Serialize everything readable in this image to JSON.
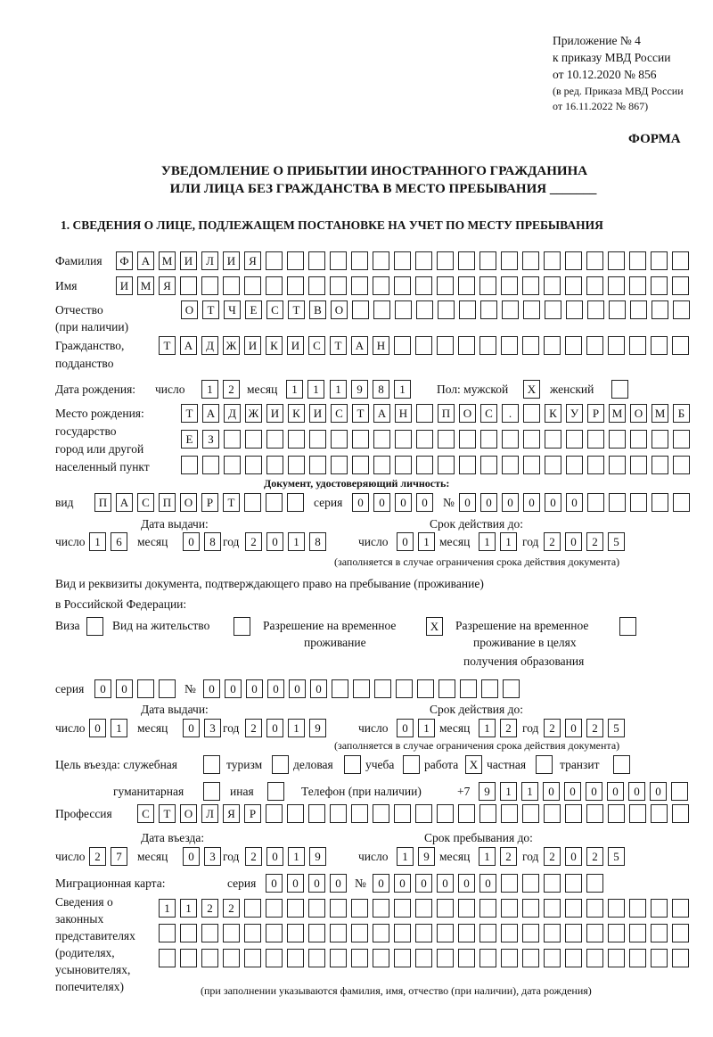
{
  "header": {
    "appendix": "Приложение № 4",
    "order": "к приказу МВД России",
    "order_date": "от 10.12.2020 № 856",
    "edition1": "(в ред. Приказа МВД России",
    "edition2": "от 16.11.2022 № 867)",
    "form_label": "ФОРМА",
    "title1": "УВЕДОМЛЕНИЕ О ПРИБЫТИИ ИНОСТРАННОГО ГРАЖДАНИНА",
    "title2": "ИЛИ ЛИЦА БЕЗ ГРАЖДАНСТВА В МЕСТО ПРЕБЫВАНИЯ _______",
    "section1": "1. СВЕДЕНИЯ О ЛИЦЕ, ПОДЛЕЖАЩЕМ ПОСТАНОВКЕ НА УЧЕТ ПО МЕСТУ ПРЕБЫВАНИЯ"
  },
  "labels": {
    "surname": "Фамилия",
    "name": "Имя",
    "patronymic1": "Отчество",
    "patronymic2": "(при наличии)",
    "citizenship1": "Гражданство,",
    "citizenship2": "подданство",
    "birth_date": "Дата рождения:",
    "day": "число",
    "month": "месяц",
    "year": "год",
    "sex_male": "Пол: мужской",
    "sex_female": "женский",
    "birthplace1": "Место рождения:",
    "birthplace2": "государство",
    "birthplace3": "город или другой",
    "birthplace4": "населенный пункт",
    "id_doc": "Документ, удостоверяющий личность:",
    "doc_type": "вид",
    "series": "серия",
    "number": "№",
    "issue_date": "Дата выдачи:",
    "valid_until": "Срок действия до:",
    "validity_note": "(заполняется в случае ограничения срока действия документа)",
    "permit_doc1": "Вид и реквизиты документа, подтверждающего право на пребывание (проживание)",
    "permit_doc2": "в Российской Федерации:",
    "visa": "Виза",
    "residence": "Вид на жительство",
    "temp_permit1": "Разрешение на временное",
    "temp_permit2": "проживание",
    "edu_permit1": "Разрешение на временное",
    "edu_permit2": "проживание в целях",
    "edu_permit3": "получения образования",
    "purpose": "Цель въезда: служебная",
    "tourism": "туризм",
    "business": "деловая",
    "study": "учеба",
    "work": "работа",
    "private": "частная",
    "transit": "транзит",
    "humanitarian": "гуманитарная",
    "other": "иная",
    "phone": "Телефон (при наличии)",
    "phone_prefix": "+7",
    "profession": "Профессия",
    "entry_date": "Дата въезда:",
    "stay_until": "Срок пребывания до:",
    "migration_card": "Миграционная карта:",
    "reps1": "Сведения о",
    "reps2": "законных",
    "reps3": "представителях",
    "reps4": "(родителях,",
    "reps5": "усыновителях,",
    "reps6": "попечителях)",
    "reps_note": "(при заполнении указываются фамилия, имя, отчество (при наличии), дата рождения)"
  },
  "fields": {
    "surname": "ФАМИЛИЯ",
    "name": "ИМЯ",
    "patronymic": "ОТЧЕСТВО",
    "citizenship": "ТАДЖИКИСТАН",
    "birth_day": "12",
    "birth_month": "11",
    "birth_year": "1981",
    "sex_male": "X",
    "sex_female": "",
    "birthplace_1": "ТАДЖИКИСТАН ПОС. КУРМОМБ",
    "birthplace_2": "ЕЗ",
    "birthplace_3": "",
    "doc_type": "ПАСПОРТ",
    "doc_series": "0000",
    "doc_number": "000000",
    "doc_issue_day": "16",
    "doc_issue_month": "08",
    "doc_issue_year": "2018",
    "doc_valid_day": "01",
    "doc_valid_month": "11",
    "doc_valid_year": "2025",
    "visa": "",
    "residence": "",
    "temp_permit": "X",
    "edu_permit": "",
    "permit_series": "00",
    "permit_number": "000000",
    "permit_issue_day": "01",
    "permit_issue_month": "03",
    "permit_issue_year": "2019",
    "permit_valid_day": "01",
    "permit_valid_month": "12",
    "permit_valid_year": "2025",
    "p_official": "",
    "p_tourism": "",
    "p_business": "",
    "p_study": "",
    "p_work": "X",
    "p_private": "",
    "p_transit": "",
    "p_humanitarian": "",
    "p_other": "",
    "phone": "911000000",
    "profession": "СТОЛЯР",
    "entry_day": "27",
    "entry_month": "03",
    "entry_year": "2019",
    "stay_day": "19",
    "stay_month": "12",
    "stay_year": "2025",
    "mig_series": "0000",
    "mig_number": "000000",
    "reps_1": "1122",
    "reps_2": "",
    "reps_3": ""
  }
}
